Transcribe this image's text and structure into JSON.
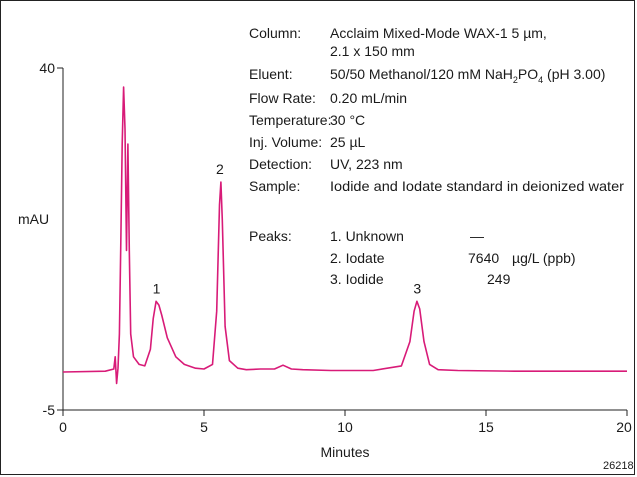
{
  "chart_data": {
    "type": "line",
    "xlabel": "Minutes",
    "ylabel": "mAU",
    "xlim": [
      0,
      20
    ],
    "ylim": [
      -5,
      40
    ],
    "xticks": [
      0,
      5,
      10,
      15,
      20
    ],
    "yticks": [
      -5,
      40
    ],
    "trace_color": "#d81b78",
    "baseline": 0,
    "peaks": [
      {
        "label": "1",
        "x": 3.35,
        "y": 9.3
      },
      {
        "label": "2",
        "x": 5.6,
        "y": 25.0
      },
      {
        "label": "3",
        "x": 12.6,
        "y": 9.3
      }
    ],
    "series": [
      {
        "x": [
          0,
          1.5,
          1.8,
          1.85,
          1.9,
          1.95,
          2.0,
          2.05,
          2.1,
          2.15,
          2.2,
          2.25,
          2.28,
          2.3,
          2.35,
          2.4,
          2.5,
          2.7,
          2.9,
          3.1,
          3.2,
          3.3,
          3.4,
          3.5,
          3.7,
          4.0,
          4.3,
          4.7,
          5.0,
          5.3,
          5.45,
          5.55,
          5.6,
          5.65,
          5.75,
          5.9,
          6.2,
          6.5,
          7.0,
          7.5,
          7.8,
          8.1,
          8.5,
          9.5,
          11,
          12.0,
          12.3,
          12.45,
          12.55,
          12.65,
          12.8,
          13.0,
          13.3,
          14,
          16,
          18,
          20
        ],
        "y": [
          0,
          0.1,
          0.4,
          2.0,
          -1.5,
          0.5,
          5.0,
          17.0,
          30.0,
          37.5,
          32.0,
          16.0,
          24.0,
          30.0,
          16.0,
          5.0,
          2.0,
          1.0,
          0.8,
          3.0,
          7.0,
          9.3,
          8.8,
          7.5,
          4.5,
          2.0,
          1.0,
          0.5,
          0.4,
          1.0,
          8.0,
          22.0,
          25.0,
          20.0,
          6.0,
          1.5,
          0.5,
          0.3,
          0.4,
          0.4,
          0.9,
          0.4,
          0.3,
          0.2,
          0.2,
          0.8,
          4.0,
          8.0,
          9.3,
          8.3,
          4.0,
          1.0,
          0.3,
          0.2,
          0.1,
          0.1,
          0.1
        ]
      }
    ]
  },
  "conditions": [
    {
      "label": "Column:",
      "value": "Acclaim Mixed-Mode WAX-1 5 µm,",
      "value2": "2.1 x 150 mm"
    },
    {
      "label": "Eluent:",
      "value_pre": "50/50 Methanol/120 mM NaH",
      "sub1": "2",
      "value_mid": "PO",
      "sub2": "4",
      "value_post": " (pH 3.00)"
    },
    {
      "label": "Flow Rate:",
      "value": "0.20 mL/min"
    },
    {
      "label": "Temperature:",
      "value": "30 °C"
    },
    {
      "label": "Inj. Volume:",
      "value": "25 µL"
    },
    {
      "label": "Detection:",
      "value": "UV, 223 nm"
    },
    {
      "label": "Sample:",
      "value": "Iodide and Iodate standard in deionized water"
    }
  ],
  "peaks_table": {
    "label": "Peaks:",
    "rows": [
      {
        "name": "1. Unknown",
        "value": "—",
        "unit": ""
      },
      {
        "name": "2. Iodate",
        "value": "7640",
        "unit": "µg/L (ppb)"
      },
      {
        "name": "3. Iodide",
        "value": "249",
        "unit": ""
      }
    ]
  },
  "figure_id": "26218"
}
